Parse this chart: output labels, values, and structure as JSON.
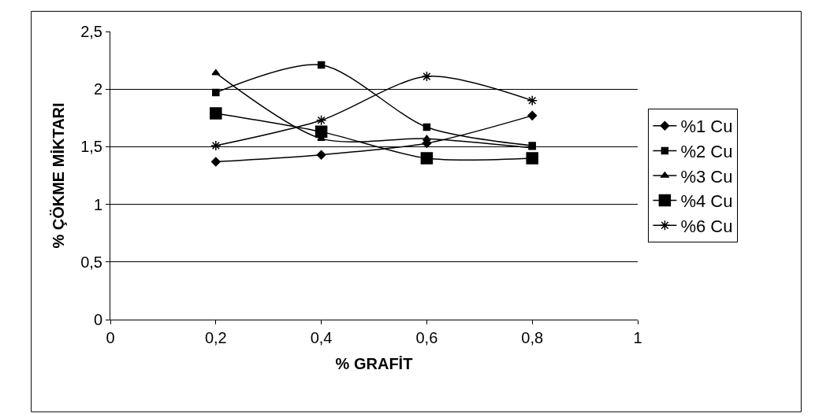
{
  "chart_data": {
    "type": "line",
    "xlabel": "% GRAFİT",
    "ylabel": "% ÇÖKME MİKTARI",
    "x": [
      0.2,
      0.4,
      0.6,
      0.8
    ],
    "series": [
      {
        "name": "%1 Cu",
        "color": "#000000",
        "marker": "diamond",
        "values": [
          1.37,
          1.43,
          1.53,
          1.77
        ]
      },
      {
        "name": "%2 Cu",
        "color": "#000000",
        "marker": "square",
        "values": [
          1.97,
          2.21,
          1.67,
          1.51
        ]
      },
      {
        "name": "%3 Cu",
        "color": "#000000",
        "marker": "triangle",
        "values": [
          2.14,
          1.57,
          1.57,
          1.49
        ]
      },
      {
        "name": "%4 Cu",
        "color": "#000000",
        "marker": "square",
        "values": [
          1.79,
          1.63,
          1.4,
          1.4
        ]
      },
      {
        "name": "%6 Cu",
        "color": "#000000",
        "marker": "cross",
        "values": [
          1.51,
          1.73,
          2.11,
          1.9
        ]
      }
    ],
    "xlim": [
      0,
      1
    ],
    "xticks": [
      0,
      {
        "value": 0.2,
        "label": "0,2"
      },
      {
        "value": 0.4,
        "label": "0,4"
      },
      {
        "value": 0.6,
        "label": "0,6"
      },
      {
        "value": 0.8,
        "label": "0,8"
      },
      1
    ],
    "ylim": [
      0,
      2.5
    ],
    "yticks": [
      0,
      {
        "value": 0.5,
        "label": "0,5"
      },
      1,
      {
        "value": 1.5,
        "label": "1,5"
      },
      2,
      {
        "value": 2.5,
        "label": "2,5"
      }
    ],
    "grid": "y",
    "legend": "right",
    "line_style": "solid"
  }
}
